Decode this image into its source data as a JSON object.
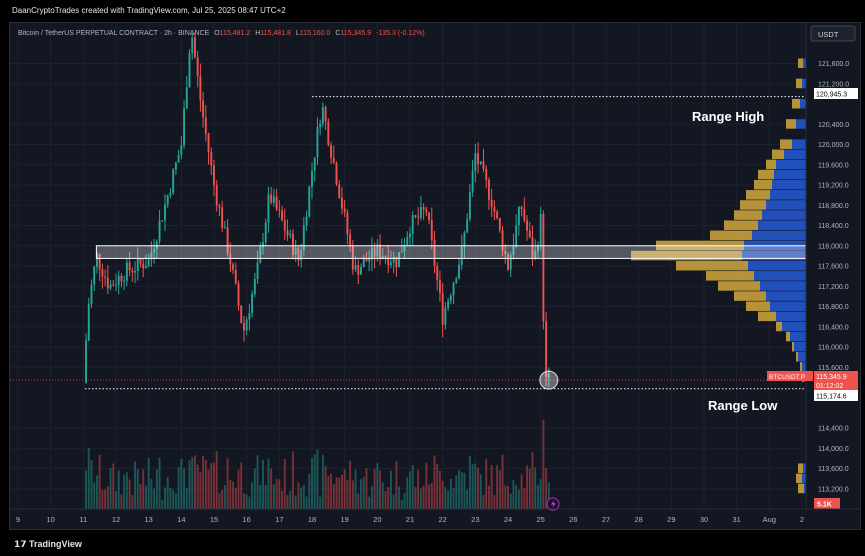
{
  "header": {
    "attribution": "DaanCryptoTrades created with TradingView.com, Jul 25, 2025 08:47 UTC+2"
  },
  "legend": {
    "symbol": "Bitcoin / TetherUS PERPETUAL CONTRACT · 2h · BINANCE",
    "o_label": "O",
    "o": "115,481.2",
    "h_label": "H",
    "h": "115,481.8",
    "l_label": "L",
    "l": "115,160.0",
    "c_label": "C",
    "c": "115,345.9",
    "change": "-135.3 (-0.12%)"
  },
  "price_axis": {
    "currency": "USDT",
    "ticks": [
      {
        "label": "121,600.0",
        "value": 121600
      },
      {
        "label": "121,200.0",
        "value": 121200
      },
      {
        "label": "120,400.0",
        "value": 120400
      },
      {
        "label": "120,000.0",
        "value": 120000
      },
      {
        "label": "119,600.0",
        "value": 119600
      },
      {
        "label": "119,200.0",
        "value": 119200
      },
      {
        "label": "118,800.0",
        "value": 118800
      },
      {
        "label": "118,400.0",
        "value": 118400
      },
      {
        "label": "118,000.0",
        "value": 118000
      },
      {
        "label": "117,600.0",
        "value": 117600
      },
      {
        "label": "117,200.0",
        "value": 117200
      },
      {
        "label": "116,800.0",
        "value": 116800
      },
      {
        "label": "116,400.0",
        "value": 116400
      },
      {
        "label": "116,000.0",
        "value": 116000
      },
      {
        "label": "115,600.0",
        "value": 115600
      },
      {
        "label": "114,400.0",
        "value": 114400
      },
      {
        "label": "114,000.0",
        "value": 114000
      },
      {
        "label": "113,600.0",
        "value": 113600
      },
      {
        "label": "113,200.0",
        "value": 113200
      }
    ],
    "range_high_tag": "120,945.3",
    "price_tag_symbol": "BTCUSDT.P",
    "price_tag": "115,345.9",
    "countdown": "01:12:02",
    "range_low_tag": "115,174.6",
    "volume_tag": "5.1K"
  },
  "time_axis": {
    "ticks": [
      {
        "label": "9",
        "day": 9
      },
      {
        "label": "10",
        "day": 10
      },
      {
        "label": "11",
        "day": 11
      },
      {
        "label": "12",
        "day": 12
      },
      {
        "label": "13",
        "day": 13
      },
      {
        "label": "14",
        "day": 14
      },
      {
        "label": "15",
        "day": 15
      },
      {
        "label": "16",
        "day": 16
      },
      {
        "label": "17",
        "day": 17
      },
      {
        "label": "18",
        "day": 18
      },
      {
        "label": "19",
        "day": 19
      },
      {
        "label": "20",
        "day": 20
      },
      {
        "label": "21",
        "day": 21
      },
      {
        "label": "22",
        "day": 22
      },
      {
        "label": "23",
        "day": 23
      },
      {
        "label": "24",
        "day": 24
      },
      {
        "label": "25",
        "day": 25
      },
      {
        "label": "26",
        "day": 26
      },
      {
        "label": "27",
        "day": 27
      },
      {
        "label": "28",
        "day": 28
      },
      {
        "label": "29",
        "day": 29
      },
      {
        "label": "30",
        "day": 30
      },
      {
        "label": "31",
        "day": 31
      },
      {
        "label": "Aug",
        "day": 32
      },
      {
        "label": "2",
        "day": 33
      }
    ]
  },
  "annotations": {
    "range_high": "Range High",
    "range_low": "Range Low"
  },
  "footer": {
    "brand": "TradingView"
  },
  "colors": {
    "bg": "#131722",
    "up": "#26a69a",
    "down": "#ef5350",
    "profile_gold": "#c9a13c",
    "profile_blue": "#2353c4",
    "white": "#ffffff"
  },
  "chart_data": {
    "type": "candlestick",
    "interval": "2h",
    "y_range": [
      112800,
      122400
    ],
    "x_range_days": [
      9,
      33.2
    ],
    "range_high": 120945.3,
    "range_low": 115174.6,
    "value_area_zone": [
      117750,
      118000
    ],
    "last_price": 115345.9,
    "waypoints": [
      [
        11.0,
        115300
      ],
      [
        11.15,
        116800
      ],
      [
        11.4,
        117800
      ],
      [
        11.8,
        117200
      ],
      [
        12.3,
        117500
      ],
      [
        13.0,
        117700
      ],
      [
        13.5,
        118800
      ],
      [
        14.0,
        120000
      ],
      [
        14.3,
        122300
      ],
      [
        14.6,
        120800
      ],
      [
        15.0,
        119200
      ],
      [
        15.5,
        117700
      ],
      [
        15.9,
        116300
      ],
      [
        16.3,
        117400
      ],
      [
        16.7,
        119000
      ],
      [
        17.2,
        118300
      ],
      [
        17.6,
        117700
      ],
      [
        18.0,
        119500
      ],
      [
        18.3,
        120800
      ],
      [
        18.8,
        119200
      ],
      [
        19.3,
        117500
      ],
      [
        20.0,
        117900
      ],
      [
        20.6,
        117700
      ],
      [
        21.0,
        118400
      ],
      [
        21.5,
        118700
      ],
      [
        22.0,
        116600
      ],
      [
        22.6,
        117900
      ],
      [
        23.0,
        119800
      ],
      [
        23.5,
        118900
      ],
      [
        24.0,
        117600
      ],
      [
        24.4,
        118800
      ],
      [
        24.8,
        117700
      ],
      [
        25.0,
        118500
      ],
      [
        25.05,
        117300
      ],
      [
        25.15,
        115300
      ],
      [
        25.25,
        115346
      ]
    ],
    "volume_profile": [
      [
        121600,
        8,
        3
      ],
      [
        121200,
        10,
        4
      ],
      [
        120800,
        14,
        6
      ],
      [
        120400,
        20,
        10
      ],
      [
        120000,
        26,
        14
      ],
      [
        119800,
        34,
        22
      ],
      [
        119600,
        40,
        30
      ],
      [
        119400,
        48,
        32
      ],
      [
        119200,
        52,
        34
      ],
      [
        119000,
        60,
        36
      ],
      [
        118800,
        66,
        40
      ],
      [
        118600,
        72,
        44
      ],
      [
        118400,
        82,
        48
      ],
      [
        118200,
        96,
        54
      ],
      [
        118000,
        150,
        62
      ],
      [
        117800,
        175,
        64
      ],
      [
        117600,
        130,
        58
      ],
      [
        117400,
        100,
        52
      ],
      [
        117200,
        88,
        46
      ],
      [
        117000,
        72,
        40
      ],
      [
        116800,
        60,
        36
      ],
      [
        116600,
        48,
        30
      ],
      [
        116400,
        30,
        24
      ],
      [
        116200,
        20,
        16
      ],
      [
        116000,
        14,
        12
      ],
      [
        115800,
        10,
        8
      ],
      [
        115600,
        6,
        4
      ],
      [
        115400,
        4,
        2
      ],
      [
        113600,
        8,
        3
      ],
      [
        113400,
        10,
        4
      ],
      [
        113200,
        8,
        2
      ]
    ]
  }
}
